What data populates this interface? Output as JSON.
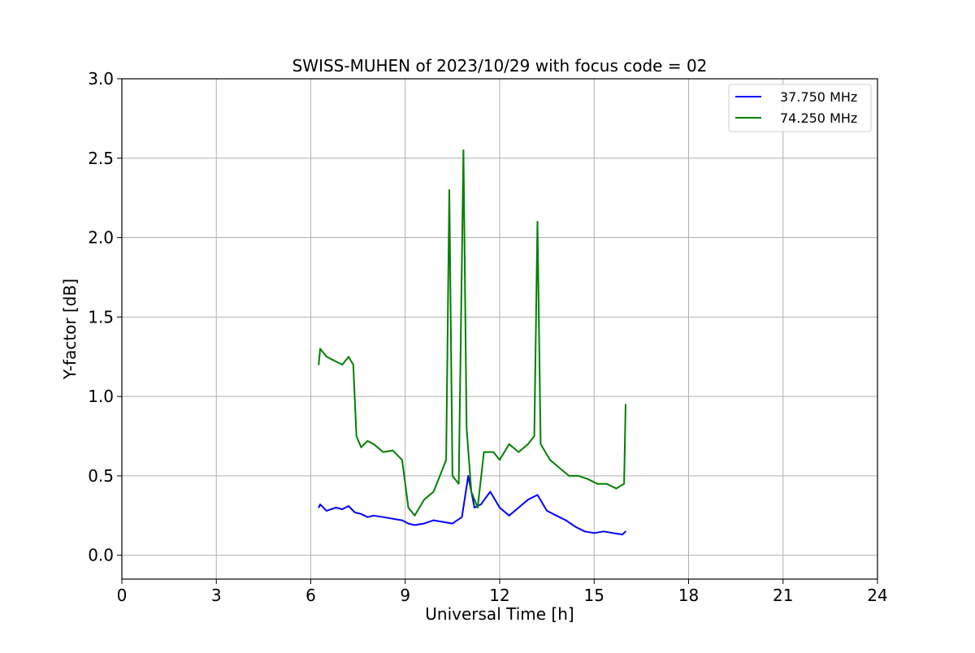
{
  "chart_data": {
    "type": "line",
    "title": "SWISS-MUHEN of 2023/10/29 with focus code = 02",
    "xlabel": "Universal Time [h]",
    "ylabel": "Y-factor [dB]",
    "xlim": [
      0,
      24
    ],
    "ylim": [
      -0.15,
      3.0
    ],
    "xticks": [
      0,
      3,
      6,
      9,
      12,
      15,
      18,
      21,
      24
    ],
    "xtick_labels": [
      "0",
      "3",
      "6",
      "9",
      "12",
      "15",
      "18",
      "21",
      "24"
    ],
    "yticks": [
      0.0,
      0.5,
      1.0,
      1.5,
      2.0,
      2.5,
      3.0
    ],
    "ytick_labels": [
      "0.0",
      "0.5",
      "1.0",
      "1.5",
      "2.0",
      "2.5",
      "3.0"
    ],
    "grid": true,
    "legend_position": "top-right",
    "series": [
      {
        "name": "37.750 MHz",
        "color": "#0000ff",
        "x": [
          6.25,
          6.3,
          6.5,
          6.8,
          7.0,
          7.2,
          7.4,
          7.6,
          7.8,
          8.0,
          8.3,
          8.6,
          8.9,
          9.1,
          9.3,
          9.6,
          9.9,
          10.2,
          10.5,
          10.8,
          11.0,
          11.2,
          11.4,
          11.7,
          12.0,
          12.3,
          12.6,
          12.9,
          13.2,
          13.5,
          13.8,
          14.1,
          14.4,
          14.7,
          15.0,
          15.3,
          15.6,
          15.9,
          16.0
        ],
        "y": [
          0.3,
          0.32,
          0.28,
          0.3,
          0.29,
          0.31,
          0.27,
          0.26,
          0.24,
          0.25,
          0.24,
          0.23,
          0.22,
          0.2,
          0.19,
          0.2,
          0.22,
          0.21,
          0.2,
          0.24,
          0.5,
          0.3,
          0.32,
          0.4,
          0.3,
          0.25,
          0.3,
          0.35,
          0.38,
          0.28,
          0.25,
          0.22,
          0.18,
          0.15,
          0.14,
          0.15,
          0.14,
          0.13,
          0.15
        ]
      },
      {
        "name": "74.250 MHz",
        "color": "#008000",
        "x": [
          6.25,
          6.3,
          6.5,
          6.8,
          7.0,
          7.2,
          7.35,
          7.45,
          7.6,
          7.8,
          8.0,
          8.3,
          8.6,
          8.9,
          9.1,
          9.3,
          9.6,
          9.9,
          10.1,
          10.3,
          10.4,
          10.5,
          10.7,
          10.85,
          10.95,
          11.1,
          11.3,
          11.5,
          11.8,
          12.0,
          12.3,
          12.6,
          12.9,
          13.1,
          13.2,
          13.3,
          13.6,
          13.9,
          14.2,
          14.5,
          14.8,
          15.1,
          15.4,
          15.7,
          15.95,
          16.0
        ],
        "y": [
          1.2,
          1.3,
          1.25,
          1.22,
          1.2,
          1.25,
          1.2,
          0.75,
          0.68,
          0.72,
          0.7,
          0.65,
          0.66,
          0.6,
          0.3,
          0.25,
          0.35,
          0.4,
          0.5,
          0.6,
          2.3,
          0.5,
          0.45,
          2.55,
          0.8,
          0.4,
          0.3,
          0.65,
          0.65,
          0.6,
          0.7,
          0.65,
          0.7,
          0.75,
          2.1,
          0.7,
          0.6,
          0.55,
          0.5,
          0.5,
          0.48,
          0.45,
          0.45,
          0.42,
          0.45,
          0.95
        ]
      }
    ]
  }
}
